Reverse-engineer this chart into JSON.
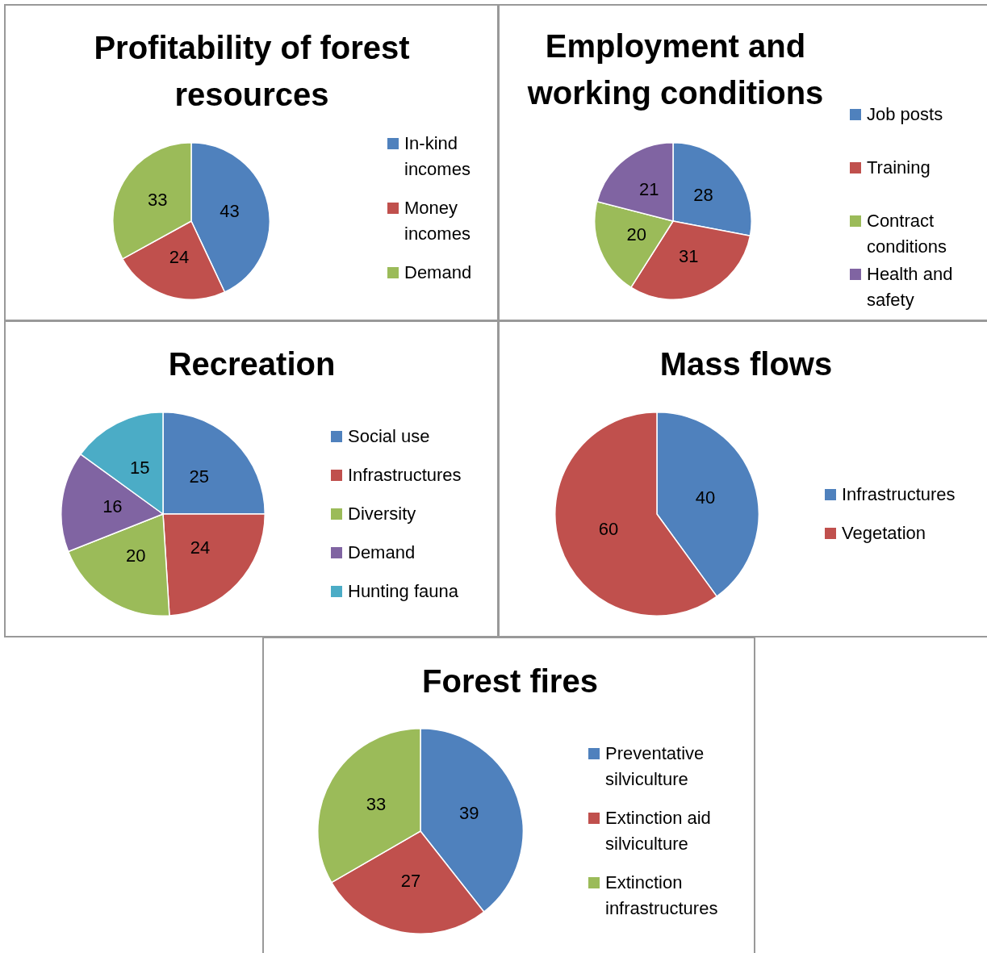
{
  "chart_data": [
    {
      "type": "pie",
      "title": "Profitability of forest resources",
      "categories": [
        "In-kind incomes",
        "Money incomes",
        "Demand"
      ],
      "values": [
        43,
        24,
        33
      ],
      "colors": [
        "#4f81bd",
        "#c0504d",
        "#9bbb59"
      ],
      "data_labels": true,
      "legend": "right"
    },
    {
      "type": "pie",
      "title": "Employment and working conditions",
      "categories": [
        "Job posts",
        "Training",
        "Contract conditions",
        "Health and safety"
      ],
      "values": [
        28,
        31,
        20,
        21
      ],
      "colors": [
        "#4f81bd",
        "#c0504d",
        "#9bbb59",
        "#8064a2"
      ],
      "data_labels": true,
      "legend": "right"
    },
    {
      "type": "pie",
      "title": "Recreation",
      "categories": [
        "Social use",
        "Infrastructures",
        "Diversity",
        "Demand",
        "Hunting fauna"
      ],
      "values": [
        25,
        24,
        20,
        16,
        15
      ],
      "colors": [
        "#4f81bd",
        "#c0504d",
        "#9bbb59",
        "#8064a2",
        "#4bacc6"
      ],
      "data_labels": true,
      "legend": "right"
    },
    {
      "type": "pie",
      "title": "Mass flows",
      "categories": [
        "Infrastructures",
        "Vegetation"
      ],
      "values": [
        40,
        60
      ],
      "colors": [
        "#4f81bd",
        "#c0504d"
      ],
      "data_labels": true,
      "legend": "right"
    },
    {
      "type": "pie",
      "title": "Forest fires",
      "categories": [
        "Preventative silviculture",
        "Extinction aid silviculture",
        "Extinction infrastructures"
      ],
      "values": [
        39,
        27,
        33
      ],
      "colors": [
        "#4f81bd",
        "#c0504d",
        "#9bbb59"
      ],
      "data_labels": true,
      "legend": "right"
    }
  ]
}
